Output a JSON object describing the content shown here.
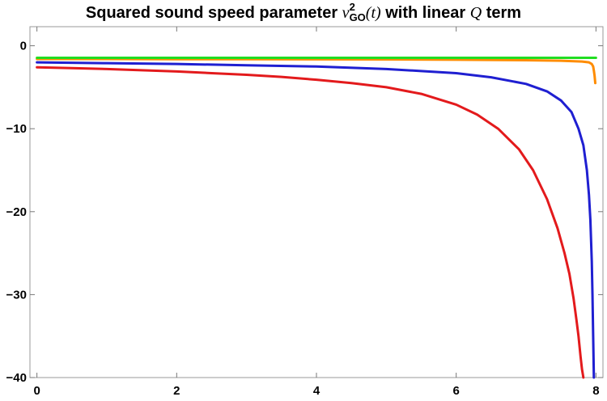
{
  "chart_data": {
    "type": "line",
    "title_parts": {
      "prefix": "Squared sound speed parameter ",
      "var": "v",
      "sup": "2",
      "sub": "GO",
      "arg": "(t)",
      "mid": " with linear ",
      "q": "Q",
      "suffix": " term"
    },
    "xlabel": "",
    "ylabel": "",
    "xlim": [
      -0.1,
      8.1
    ],
    "ylim": [
      -40,
      2.3
    ],
    "x_ticks": [
      0,
      2,
      4,
      6,
      8
    ],
    "y_ticks": [
      0,
      -10,
      -20,
      -30,
      -40
    ],
    "grid": false,
    "series": [
      {
        "color": "#e31a1c",
        "x": [
          0,
          0.5,
          1,
          1.5,
          2,
          2.5,
          3,
          3.5,
          4,
          4.5,
          5,
          5.5,
          6,
          6.3,
          6.6,
          6.9,
          7.1,
          7.3,
          7.45,
          7.55,
          7.62,
          7.68,
          7.72,
          7.75,
          7.78,
          7.8,
          7.82
        ],
        "y": [
          -2.6,
          -2.7,
          -2.8,
          -2.95,
          -3.1,
          -3.3,
          -3.5,
          -3.75,
          -4.1,
          -4.5,
          -5.0,
          -5.8,
          -7.1,
          -8.3,
          -10.0,
          -12.5,
          -15.0,
          -18.5,
          -22.0,
          -25.0,
          -27.5,
          -30.5,
          -33.0,
          -35.0,
          -37.5,
          -39.0,
          -40.0
        ]
      },
      {
        "color": "#1f1fd1",
        "x": [
          0,
          1,
          2,
          3,
          4,
          5,
          6,
          6.5,
          7,
          7.3,
          7.5,
          7.65,
          7.75,
          7.82,
          7.87,
          7.9,
          7.92,
          7.94,
          7.95,
          7.96,
          7.97
        ],
        "y": [
          -2.0,
          -2.1,
          -2.2,
          -2.35,
          -2.5,
          -2.8,
          -3.3,
          -3.8,
          -4.6,
          -5.5,
          -6.6,
          -8.0,
          -10.0,
          -12.0,
          -15.0,
          -18.0,
          -21.0,
          -26.0,
          -30.0,
          -35.0,
          -40.0
        ]
      },
      {
        "color": "#ff8c00",
        "x": [
          0,
          1,
          2,
          3,
          4,
          5,
          6,
          7,
          7.5,
          7.8,
          7.9,
          7.94,
          7.96,
          7.97,
          7.98,
          7.99
        ],
        "y": [
          -1.6,
          -1.6,
          -1.62,
          -1.62,
          -1.64,
          -1.65,
          -1.68,
          -1.75,
          -1.8,
          -1.9,
          -2.0,
          -2.2,
          -2.5,
          -3.0,
          -3.6,
          -4.5
        ]
      },
      {
        "color": "#22dd22",
        "x": [
          0,
          8
        ],
        "y": [
          -1.45,
          -1.45
        ]
      }
    ]
  }
}
